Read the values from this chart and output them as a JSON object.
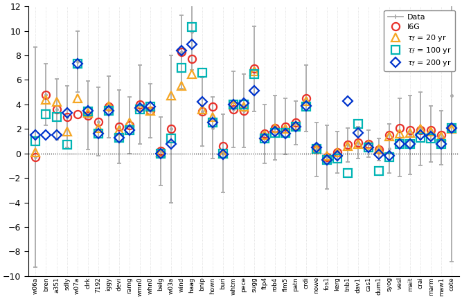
{
  "stations": [
    "w06a",
    "bren",
    "a351",
    "sdly",
    "w07a",
    "clrk",
    "7192",
    "iggy",
    "devi",
    "ramg",
    "wmn0",
    "whn0",
    "belg",
    "w03a",
    "wind",
    "haag",
    "bnip",
    "hown",
    "buri",
    "whtm",
    "pece",
    "sugg",
    "ftp4",
    "rob4",
    "flm5",
    "patn",
    "crdi",
    "nowe",
    "fos1",
    "kerg",
    "tnb1",
    "dav1",
    "cas1",
    "dum1",
    "syog",
    "vesl",
    "mait",
    "crai",
    "marm",
    "maw1",
    "cote"
  ],
  "data_val": [
    -0.3,
    4.8,
    3.6,
    3.0,
    7.5,
    3.1,
    2.6,
    3.8,
    2.2,
    2.3,
    4.0,
    3.5,
    0.2,
    2.0,
    8.3,
    9.9,
    3.4,
    2.1,
    0.0,
    3.6,
    3.5,
    6.9,
    1.6,
    2.1,
    2.2,
    2.5,
    4.5,
    0.3,
    -0.3,
    0.1,
    0.7,
    0.9,
    0.8,
    0.3,
    0.4,
    1.3,
    1.5,
    2.0,
    1.6,
    1.3,
    4.7
  ],
  "data_errlo": [
    9.0,
    2.5,
    2.5,
    2.5,
    2.5,
    2.8,
    2.8,
    2.5,
    3.0,
    2.3,
    3.2,
    2.2,
    2.8,
    6.0,
    3.0,
    3.1,
    2.8,
    2.5,
    3.2,
    3.1,
    3.0,
    3.5,
    2.4,
    2.6,
    2.3,
    1.8,
    2.7,
    2.2,
    2.6,
    1.7,
    1.4,
    1.3,
    1.1,
    0.9,
    2.0,
    3.2,
    3.2,
    3.0,
    2.3,
    2.2,
    13.5
  ],
  "data_errhi": [
    9.0,
    2.5,
    2.5,
    2.5,
    2.5,
    2.8,
    2.8,
    2.5,
    3.0,
    2.3,
    3.2,
    2.2,
    2.8,
    6.0,
    3.0,
    3.1,
    2.8,
    2.5,
    3.2,
    3.1,
    3.0,
    3.5,
    2.4,
    2.6,
    2.3,
    1.8,
    2.7,
    2.2,
    2.6,
    1.7,
    1.4,
    1.3,
    1.1,
    0.9,
    2.0,
    3.2,
    3.2,
    3.0,
    2.3,
    2.2,
    13.5
  ],
  "i6g": [
    -0.3,
    4.8,
    3.6,
    3.0,
    3.2,
    3.1,
    2.6,
    3.8,
    2.2,
    2.3,
    4.0,
    3.5,
    0.2,
    2.0,
    8.3,
    7.7,
    3.4,
    3.8,
    0.6,
    3.6,
    3.5,
    6.9,
    1.6,
    2.1,
    2.2,
    2.5,
    4.5,
    0.3,
    -0.3,
    0.1,
    0.7,
    0.9,
    0.8,
    0.3,
    1.5,
    2.1,
    1.9,
    1.9,
    1.9,
    1.5,
    2.1
  ],
  "tau20": [
    0.1,
    4.4,
    4.2,
    1.8,
    4.5,
    3.3,
    2.1,
    3.9,
    1.9,
    2.5,
    3.8,
    3.5,
    0.1,
    4.7,
    5.5,
    6.5,
    3.6,
    3.0,
    0.0,
    4.0,
    3.8,
    6.7,
    1.5,
    2.1,
    2.0,
    2.3,
    4.3,
    0.4,
    -0.2,
    0.1,
    0.6,
    0.8,
    0.7,
    0.4,
    1.4,
    1.6,
    1.7,
    2.0,
    1.8,
    1.4,
    2.0
  ],
  "tau100": [
    1.0,
    3.2,
    3.0,
    0.7,
    7.3,
    3.4,
    1.6,
    3.5,
    1.3,
    1.9,
    3.6,
    3.8,
    0.0,
    1.2,
    7.0,
    10.3,
    6.6,
    2.5,
    0.0,
    4.0,
    4.0,
    6.5,
    1.2,
    1.7,
    1.7,
    2.2,
    3.8,
    0.4,
    -0.5,
    -0.4,
    -1.6,
    2.4,
    0.5,
    -1.4,
    -0.3,
    0.8,
    0.8,
    1.3,
    1.2,
    0.8,
    2.1
  ],
  "tau200": [
    1.5,
    1.5,
    1.5,
    3.3,
    7.3,
    3.5,
    1.6,
    3.5,
    1.3,
    1.9,
    3.7,
    3.8,
    0.0,
    0.8,
    8.4,
    8.9,
    4.2,
    2.5,
    -0.1,
    4.0,
    4.1,
    5.1,
    1.2,
    1.8,
    1.6,
    2.2,
    3.9,
    0.5,
    -0.5,
    -0.2,
    4.3,
    1.7,
    0.5,
    -0.1,
    -0.2,
    0.8,
    0.8,
    1.5,
    1.4,
    0.8,
    2.1
  ],
  "color_i6g": "#e8312a",
  "color_tau20": "#f5a623",
  "color_tau100": "#00b4b4",
  "color_tau200": "#0033cc",
  "color_data": "#aaaaaa",
  "ylim": [
    -10,
    12
  ],
  "yticks": [
    -10,
    -8,
    -6,
    -4,
    -2,
    0,
    2,
    4,
    6,
    8,
    10,
    12
  ]
}
